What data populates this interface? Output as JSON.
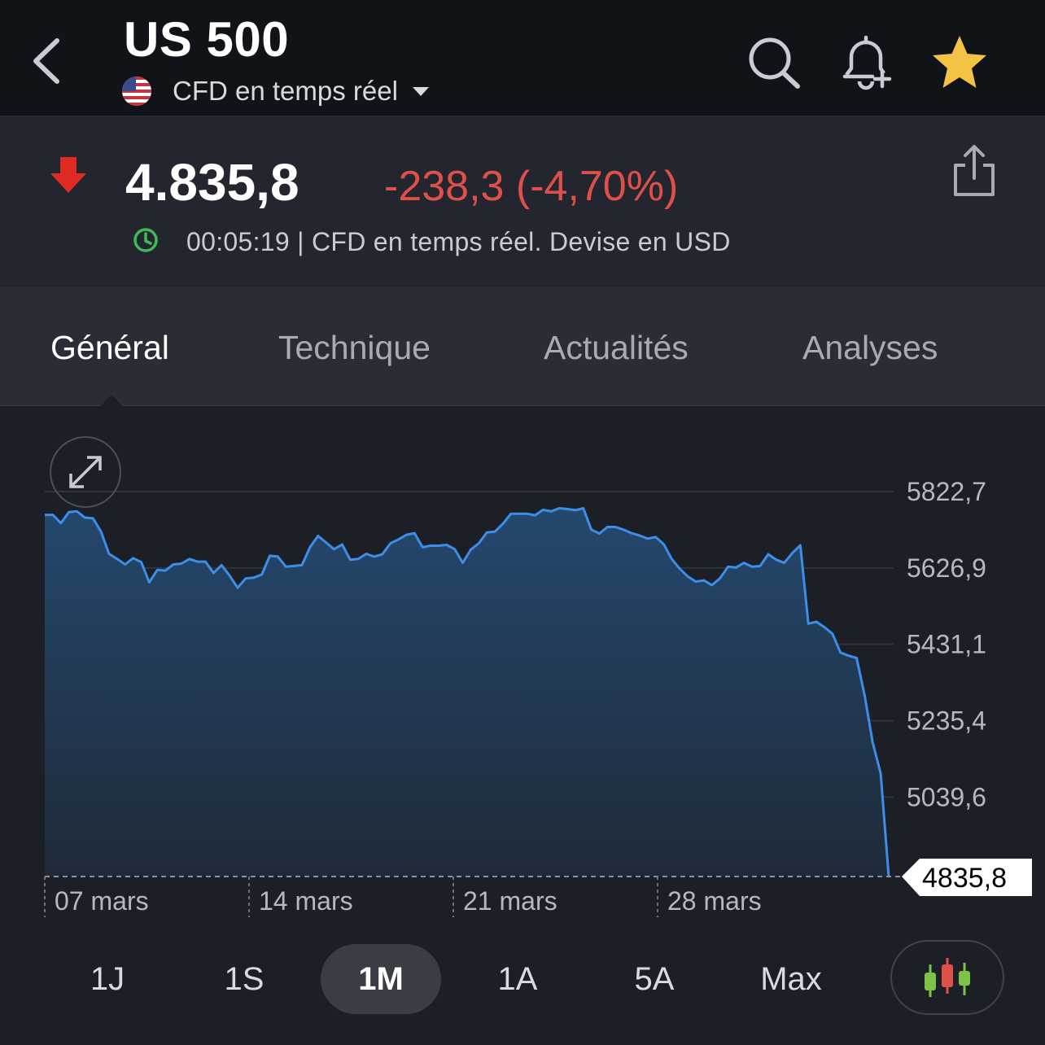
{
  "header": {
    "title": "US 500",
    "subtitle": "CFD en temps réel",
    "icons": [
      "back-arrow-icon",
      "us-flag-icon",
      "search-icon",
      "bell-plus-icon",
      "star-icon"
    ],
    "star_color": "#f5c343"
  },
  "quote": {
    "price": "4.835,8",
    "change": "-238,3 (-4,70%)",
    "status": "00:05:19 | CFD en temps réel. Devise en USD",
    "change_color": "#e0504a",
    "clock_color": "#3dbb58"
  },
  "tabs": [
    {
      "label": "Général",
      "active": true
    },
    {
      "label": "Technique",
      "active": false
    },
    {
      "label": "Actualités",
      "active": false
    },
    {
      "label": "Analyses",
      "active": false
    }
  ],
  "chart_data": {
    "type": "area",
    "x_ticks": [
      "07 mars",
      "14 mars",
      "21 mars",
      "28 mars"
    ],
    "y_ticks": [
      "5822,7",
      "5626,9",
      "5431,1",
      "5235,4",
      "5039,6"
    ],
    "y_tick_values": [
      5822.7,
      5626.9,
      5431.1,
      5235.4,
      5039.6
    ],
    "ylim": [
      4835.8,
      5822.7
    ],
    "last_value": 4835.8,
    "last_value_label": "4835,8",
    "grid": true,
    "line_color": "#3d8ee8",
    "values": [
      5763,
      5763,
      5742,
      5770,
      5772,
      5756,
      5754,
      5720,
      5663,
      5650,
      5636,
      5652,
      5642,
      5590,
      5622,
      5620,
      5636,
      5638,
      5650,
      5643,
      5643,
      5614,
      5634,
      5607,
      5576,
      5600,
      5602,
      5610,
      5658,
      5656,
      5630,
      5632,
      5634,
      5680,
      5709,
      5692,
      5675,
      5687,
      5648,
      5650,
      5663,
      5656,
      5662,
      5690,
      5700,
      5712,
      5716,
      5680,
      5684,
      5684,
      5686,
      5675,
      5640,
      5674,
      5690,
      5718,
      5720,
      5740,
      5766,
      5766,
      5766,
      5762,
      5776,
      5772,
      5780,
      5778,
      5775,
      5780,
      5725,
      5715,
      5732,
      5732,
      5725,
      5716,
      5710,
      5702,
      5706,
      5688,
      5650,
      5625,
      5605,
      5592,
      5595,
      5583,
      5600,
      5630,
      5628,
      5640,
      5630,
      5632,
      5662,
      5648,
      5640,
      5665,
      5685,
      5484,
      5489,
      5475,
      5458,
      5410,
      5402,
      5396,
      5300,
      5180,
      5100,
      4835.8
    ]
  },
  "ranges": [
    {
      "label": "1J",
      "active": false
    },
    {
      "label": "1S",
      "active": false
    },
    {
      "label": "1M",
      "active": true
    },
    {
      "label": "1A",
      "active": false
    },
    {
      "label": "5A",
      "active": false
    },
    {
      "label": "Max",
      "active": false
    }
  ]
}
